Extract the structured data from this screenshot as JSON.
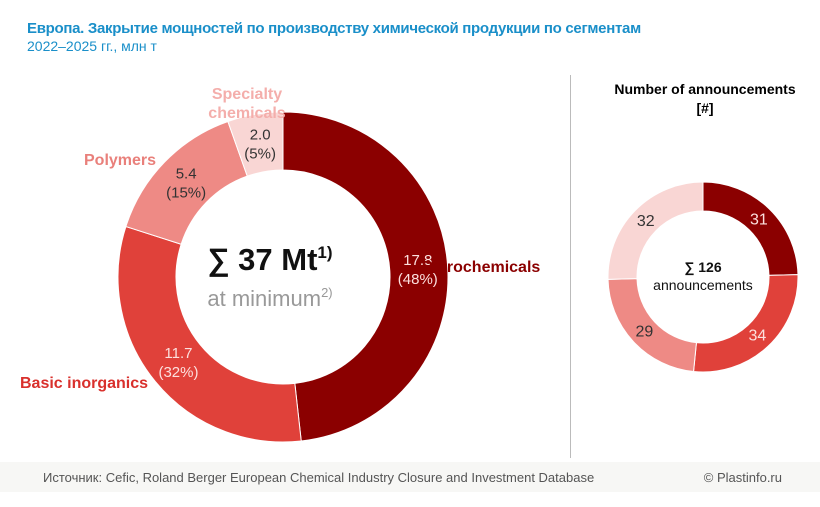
{
  "title": "Европа. Закрытие мощностей по производству химической продукции по сегментам",
  "subtitle": "2022–2025 гг., млн т",
  "chart_data": [
    {
      "type": "pie",
      "variant": "donut",
      "unit": "Mt",
      "categories": [
        "Petrochemicals",
        "Basic inorganics",
        "Polymers",
        "Specialty chemicals"
      ],
      "values": [
        17.8,
        11.7,
        5.4,
        2.0
      ],
      "percent_labels": [
        "(48%)",
        "(32%)",
        "(15%)",
        "(5%)"
      ],
      "colors": [
        "#8b0000",
        "#e0413a",
        "#ee8a85",
        "#f9d6d4"
      ],
      "label_colors": [
        "#8b0000",
        "#d9302c",
        "#e9807b",
        "#f4aeab"
      ],
      "center_line1": "∑ 37 Mt",
      "center_sup1": "1)",
      "center_line2": "at minimum",
      "center_sup2": "2)"
    },
    {
      "type": "pie",
      "variant": "donut",
      "title": "Number of announcements [#]",
      "categories": [
        "Petrochemicals",
        "Basic inorganics",
        "Polymers",
        "Specialty chemicals"
      ],
      "values": [
        31,
        34,
        29,
        32
      ],
      "colors": [
        "#8b0000",
        "#e0413a",
        "#ee8a85",
        "#f9d6d4"
      ],
      "center_line1": "∑ 126",
      "center_line2": "announcements"
    }
  ],
  "footer": {
    "source": "Источник: Cefic, Roland Berger European Chemical Industry Closure and Investment Database",
    "copyright": "© Plastinfo.ru"
  }
}
